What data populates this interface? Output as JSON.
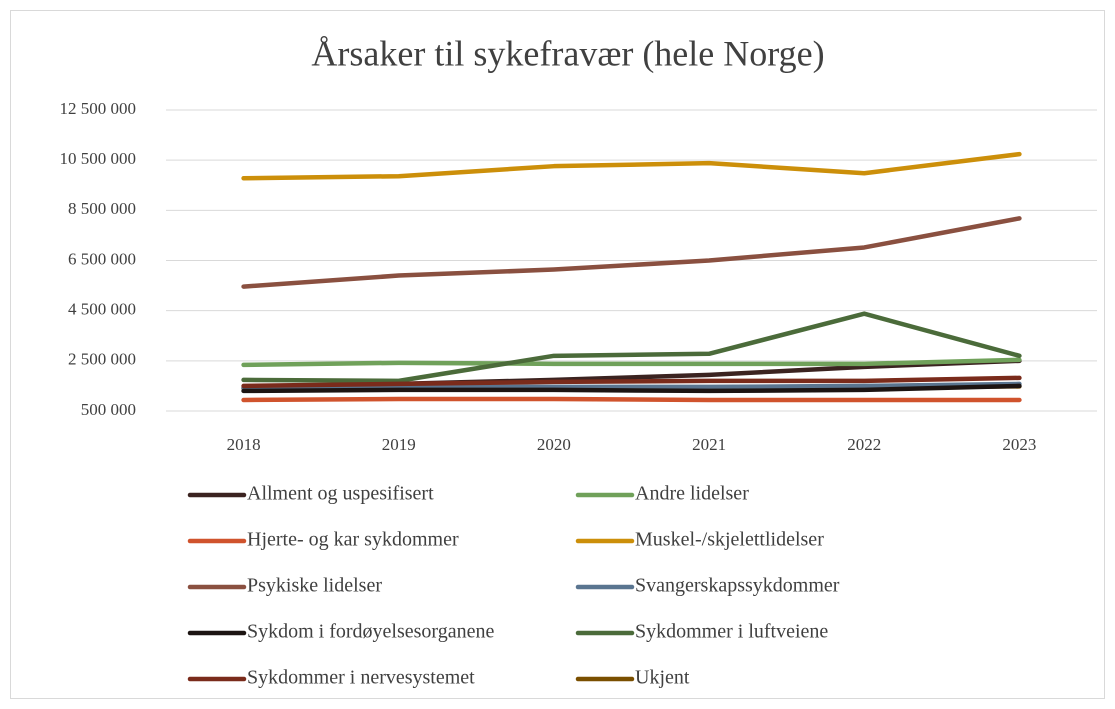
{
  "chart_data": {
    "type": "line",
    "title": "Årsaker til sykefravær (hele Norge)",
    "categories": [
      "2018",
      "2019",
      "2020",
      "2021",
      "2022",
      "2023"
    ],
    "ylim": [
      500000,
      12500000
    ],
    "yticks": [
      {
        "value": 500000,
        "label": "500 000"
      },
      {
        "value": 2500000,
        "label": "2 500 000"
      },
      {
        "value": 4500000,
        "label": "4 500 000"
      },
      {
        "value": 6500000,
        "label": "6 500 000"
      },
      {
        "value": 8500000,
        "label": "8 500 000"
      },
      {
        "value": 10500000,
        "label": "10 500 000"
      },
      {
        "value": 12500000,
        "label": "12 500 000"
      }
    ],
    "grid": true,
    "series": [
      {
        "name": "Allment og uspesifisert",
        "color": "#3b2320",
        "values": [
          1420000,
          1580000,
          1740000,
          1940000,
          2260000,
          2500000
        ]
      },
      {
        "name": "Andre lidelser",
        "color": "#70a15a",
        "values": [
          2340000,
          2420000,
          2380000,
          2380000,
          2380000,
          2540000
        ]
      },
      {
        "name": "Hjerte- og kar sykdommer",
        "color": "#d0532d",
        "values": [
          940000,
          980000,
          980000,
          940000,
          940000,
          940000
        ]
      },
      {
        "name": "Muskel-/skjelettlidelser",
        "color": "#cc8f0a",
        "values": [
          9780000,
          9860000,
          10260000,
          10380000,
          9980000,
          10740000
        ]
      },
      {
        "name": "Psykiske lidelser",
        "color": "#8a5040",
        "values": [
          5460000,
          5900000,
          6140000,
          6500000,
          7020000,
          8180000
        ]
      },
      {
        "name": "Svangerskapssykdommer",
        "color": "#5a7590",
        "values": [
          1420000,
          1460000,
          1460000,
          1460000,
          1500000,
          1580000
        ]
      },
      {
        "name": "Sykdom i fordøyelsesorganene",
        "color": "#1c1412",
        "values": [
          1300000,
          1340000,
          1340000,
          1300000,
          1340000,
          1500000
        ]
      },
      {
        "name": "Sykdommer i luftveiene",
        "color": "#4b6b3a",
        "values": [
          1740000,
          1700000,
          2700000,
          2780000,
          4380000,
          2700000
        ]
      },
      {
        "name": "Sykdommer i nervesystemet",
        "color": "#7a2b1b",
        "values": [
          1500000,
          1580000,
          1660000,
          1700000,
          1700000,
          1820000
        ]
      },
      {
        "name": "Ukjent",
        "color": "#7a4f00",
        "values": [
          1400000,
          1420000,
          1420000,
          1420000,
          1440000,
          1480000
        ]
      }
    ]
  }
}
